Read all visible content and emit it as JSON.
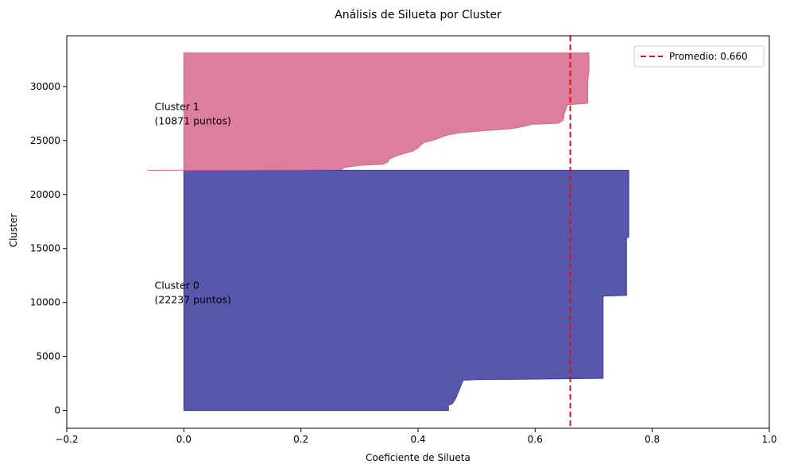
{
  "chart_data": {
    "type": "area",
    "title": "Análisis de Silueta por Cluster",
    "xlabel": "Coeficiente de Silueta",
    "ylabel": "Cluster",
    "xlim": [
      -0.2,
      1.0
    ],
    "ylim": [
      -1650,
      34700
    ],
    "x_ticks": [
      -0.2,
      0.0,
      0.2,
      0.4,
      0.6,
      0.8,
      1.0
    ],
    "x_tick_labels": [
      "−0.2",
      "0.0",
      "0.2",
      "0.4",
      "0.6",
      "0.8",
      "1.0"
    ],
    "y_ticks": [
      0,
      5000,
      10000,
      15000,
      20000,
      25000,
      30000
    ],
    "y_tick_labels": [
      "0",
      "5000",
      "10000",
      "15000",
      "20000",
      "25000",
      "30000"
    ],
    "grid": false,
    "legend_position": "top-right",
    "reference_line": {
      "orientation": "vertical",
      "x": 0.66,
      "label": "Promedio: 0.660",
      "color": "#dd1111",
      "style": "dashed"
    },
    "series": [
      {
        "cluster": 0,
        "start": 0,
        "size": 22237,
        "color": "#3a3a9e",
        "annotation": [
          "Cluster 0",
          "(22237 puntos)"
        ],
        "profile": [
          [
            0,
            0.452
          ],
          [
            500,
            0.452
          ],
          [
            600,
            0.458
          ],
          [
            900,
            0.462
          ],
          [
            1200,
            0.465
          ],
          [
            1600,
            0.468
          ],
          [
            2000,
            0.471
          ],
          [
            2400,
            0.474
          ],
          [
            2800,
            0.477
          ],
          [
            2850,
            0.5
          ],
          [
            2900,
            0.58
          ],
          [
            2950,
            0.67
          ],
          [
            2980,
            0.716
          ],
          [
            10500,
            0.716
          ],
          [
            10600,
            0.718
          ],
          [
            10650,
            0.756
          ],
          [
            16000,
            0.756
          ],
          [
            16050,
            0.76
          ],
          [
            22237,
            0.76
          ]
        ]
      },
      {
        "cluster": 1,
        "start": 22237,
        "size": 10871,
        "color": "#d6678d",
        "annotation": [
          "Cluster 1",
          "(10871 puntos)"
        ],
        "profile": [
          [
            22237,
            -0.062
          ],
          [
            22260,
            0.1
          ],
          [
            22280,
            0.24
          ],
          [
            22300,
            0.27
          ],
          [
            22400,
            0.272
          ],
          [
            22500,
            0.275
          ],
          [
            22700,
            0.3
          ],
          [
            22800,
            0.34
          ],
          [
            23000,
            0.348
          ],
          [
            23300,
            0.352
          ],
          [
            23500,
            0.36
          ],
          [
            23700,
            0.37
          ],
          [
            24000,
            0.39
          ],
          [
            24300,
            0.4
          ],
          [
            24600,
            0.405
          ],
          [
            24800,
            0.41
          ],
          [
            25100,
            0.43
          ],
          [
            25300,
            0.44
          ],
          [
            25500,
            0.45
          ],
          [
            25700,
            0.47
          ],
          [
            25900,
            0.51
          ],
          [
            26100,
            0.56
          ],
          [
            26300,
            0.58
          ],
          [
            26500,
            0.595
          ],
          [
            26600,
            0.64
          ],
          [
            26900,
            0.648
          ],
          [
            27500,
            0.65
          ],
          [
            28300,
            0.655
          ],
          [
            28450,
            0.69
          ],
          [
            30500,
            0.69
          ],
          [
            31500,
            0.692
          ],
          [
            33108,
            0.692
          ]
        ]
      }
    ]
  }
}
